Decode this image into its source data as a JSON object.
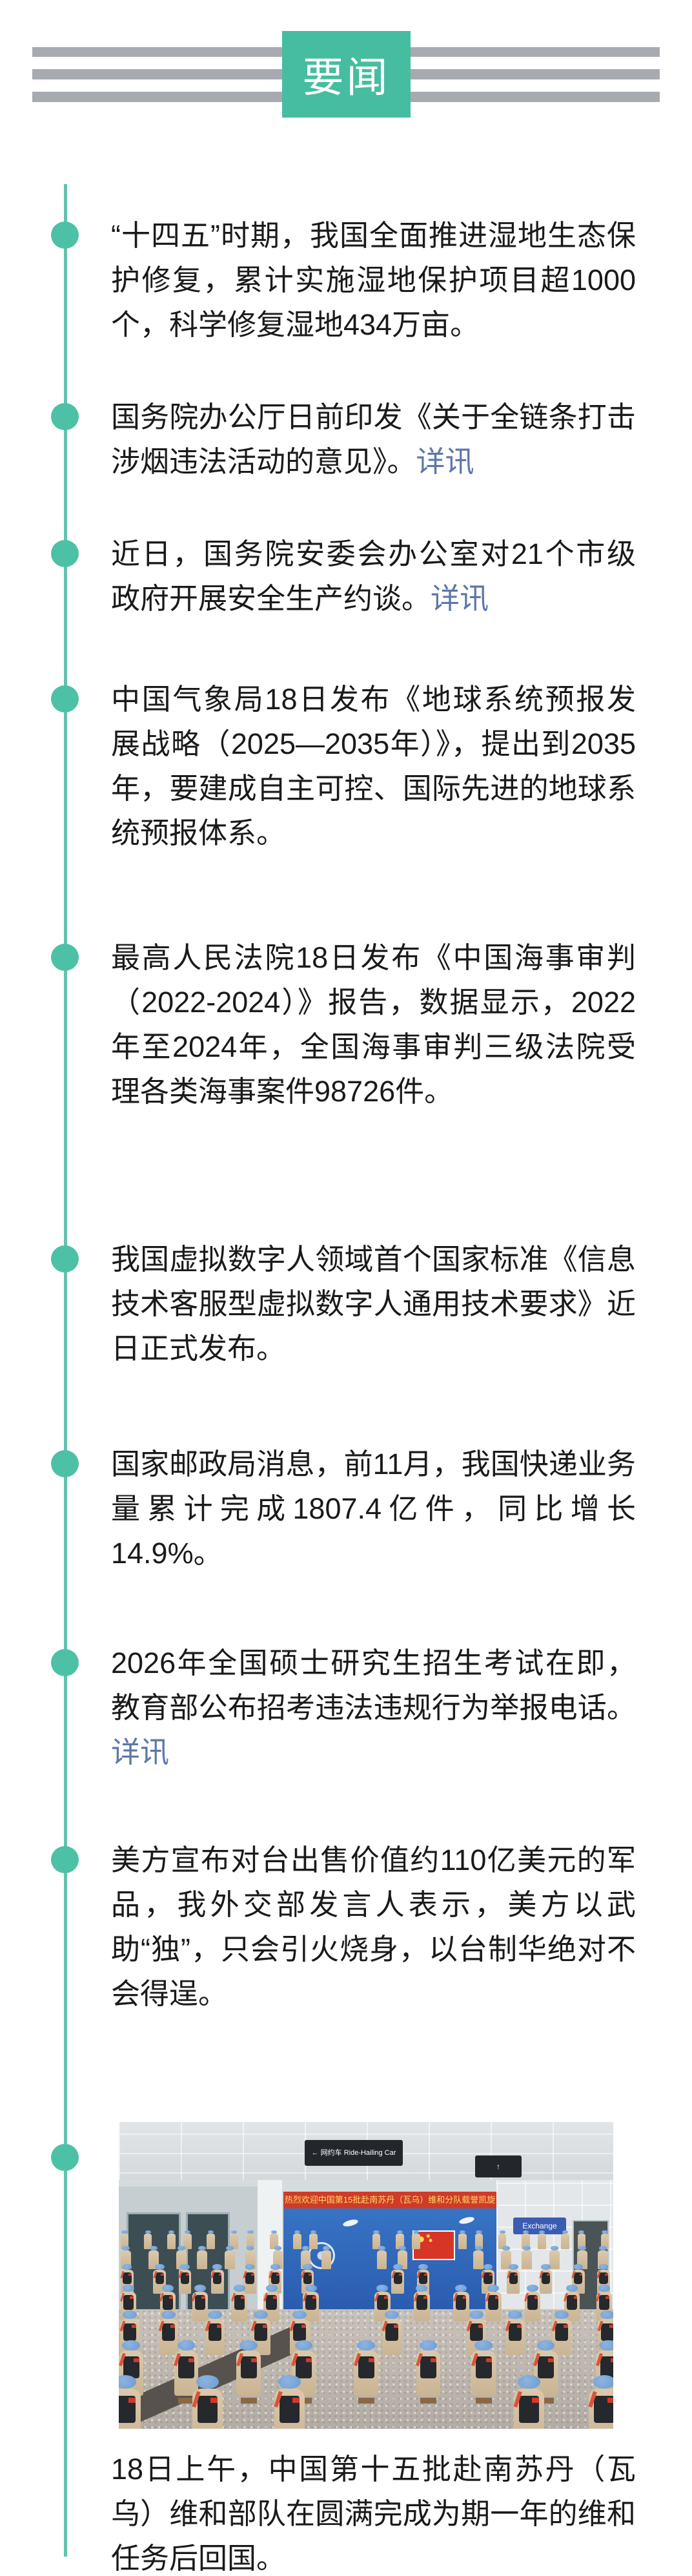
{
  "header": {
    "badge": "要闻"
  },
  "colors": {
    "accent": "#46bda0",
    "stripe": "#a7aab1",
    "dot": "#4cc1a5",
    "line": "#63c2ae",
    "link": "#5d77a8",
    "ink": "#1a1a1a"
  },
  "items": [
    {
      "text": "“十四五”时期，我国全面推进湿地生态保护修复，累计实施湿地保护项目超1000个，科学修复湿地434万亩。",
      "link": ""
    },
    {
      "text": "国务院办公厅日前印发《关于全链条打击涉烟违法活动的意见》。",
      "link": "详讯"
    },
    {
      "text": "近日，国务院安委会办公室对21个市级政府开展安全生产约谈。",
      "link": "详讯"
    },
    {
      "text": "中国气象局18日发布《地球系统预报发展战略（2025—2035年）》，提出到2035年，要建成自主可控、国际先进的地球系统预报体系。",
      "link": ""
    },
    {
      "text": "最高人民法院18日发布《中国海事审判（2022-2024）》报告，数据显示，2022年至2024年，全国海事审判三级法院受理各类海事案件98726件。",
      "link": ""
    },
    {
      "text": "我国虚拟数字人领域首个国家标准《信息技术客服型虚拟数字人通用技术要求》近日正式发布。",
      "link": ""
    },
    {
      "text": "国家邮政局消息，前11月，我国快递业务量累计完成1807.4亿件，同比增长14.9%。",
      "link": ""
    },
    {
      "text": "2026年全国硕士研究生招生考试在即，教育部公布招考违法违规行为举报电话。",
      "link": "详讯"
    },
    {
      "text": "美方宣布对台出售价值约110亿美元的军品，我外交部发言人表示，美方以武助“独”，只会引火烧身，以台制华绝对不会得逞。",
      "link": ""
    }
  ],
  "photo": {
    "banner": "热烈欢迎中国第15批赴南苏丹（瓦乌）维和分队载誉凯旋",
    "ceiling_sign": "← 网约车 Ride-Hailing Car",
    "wall_sign": "Exchange"
  },
  "caption": "18日上午，中国第十五批赴南苏丹（瓦乌）维和部队在圆满完成为期一年的维和任务后回国。"
}
